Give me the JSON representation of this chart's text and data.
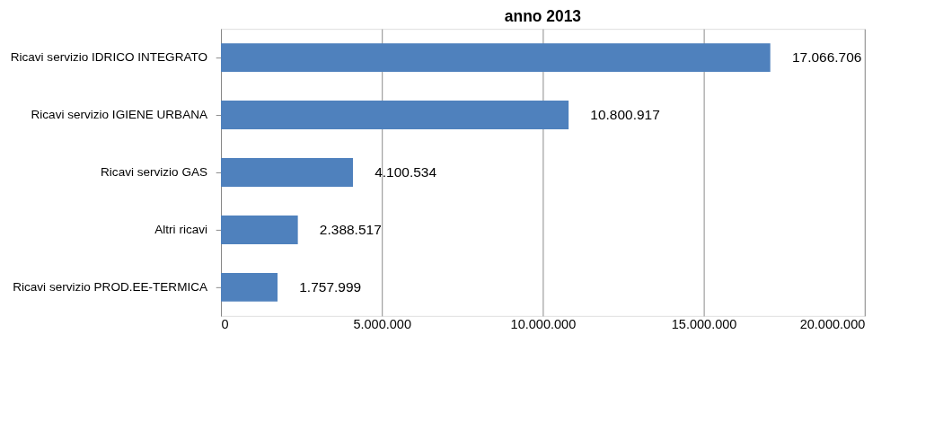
{
  "chart_data": {
    "type": "bar",
    "orientation": "horizontal",
    "title": "anno 2013",
    "categories": [
      "Ricavi servizio IDRICO INTEGRATO",
      "Ricavi servizio IGIENE URBANA",
      "Ricavi servizio GAS",
      "Altri ricavi",
      "Ricavi servizio  PROD.EE-TERMICA"
    ],
    "values": [
      17066706,
      10800917,
      4100534,
      2388517,
      1757999
    ],
    "value_labels": [
      "17.066.706",
      "10.800.917",
      "4.100.534",
      "2.388.517",
      "1.757.999"
    ],
    "color": "#4f81bd",
    "xlim": [
      0,
      20000000
    ],
    "xticks": [
      0,
      {
        "value": 5000000,
        "label": "5.000.000"
      },
      {
        "value": 10000000,
        "label": "10.000.000"
      },
      {
        "value": 15000000,
        "label": "15.000.000"
      },
      {
        "value": 20000000,
        "label": "20.000.000"
      }
    ],
    "grid": "x"
  }
}
